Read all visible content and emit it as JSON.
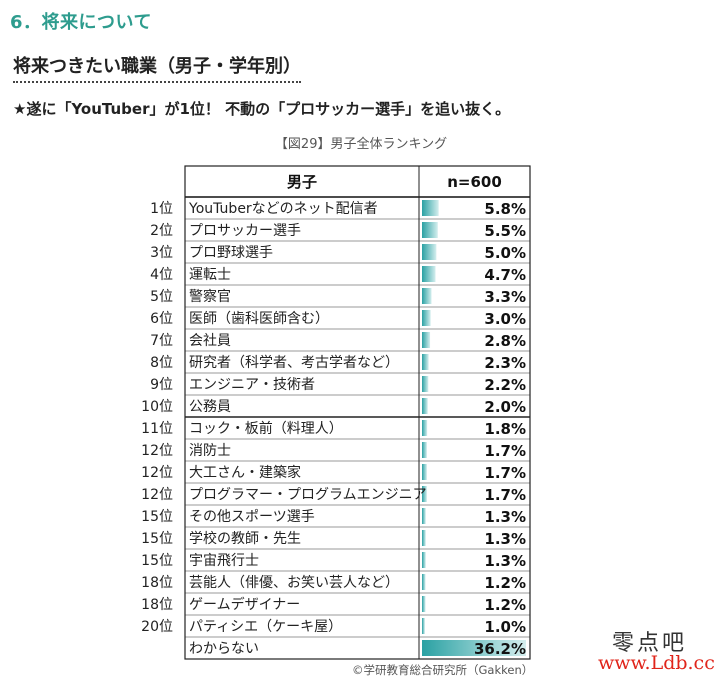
{
  "page": {
    "section_heading": "6．将来について",
    "sub_heading": "将来つきたい職業（男子・学年別）",
    "lead": "★遂に「YouTuber」が1位！ 不動の「プロサッカー選手」を追い抜く。",
    "figure_caption": "【図29】男子全体ランキング",
    "copyright": "©学研教育総合研究所（Gakken）",
    "watermark_line1": "零点吧",
    "watermark_line2": "www.Ldb.cc"
  },
  "colors": {
    "accent": "#2e9c8e",
    "bar_dark": "#2aa1a3",
    "bar_light": "#d4eeee"
  },
  "chart_data": {
    "type": "table",
    "title": "【図29】男子全体ランキング",
    "column_headers": [
      "男子",
      "n=600"
    ],
    "unit": "%",
    "ylim": [
      0,
      36.2
    ],
    "rows": [
      {
        "rank": "1位",
        "job": "YouTuberなどのネット配信者",
        "value": 5.8,
        "label": "5.8%"
      },
      {
        "rank": "2位",
        "job": "プロサッカー選手",
        "value": 5.5,
        "label": "5.5%"
      },
      {
        "rank": "3位",
        "job": "プロ野球選手",
        "value": 5.0,
        "label": "5.0%"
      },
      {
        "rank": "4位",
        "job": "運転士",
        "value": 4.7,
        "label": "4.7%"
      },
      {
        "rank": "5位",
        "job": "警察官",
        "value": 3.3,
        "label": "3.3%"
      },
      {
        "rank": "6位",
        "job": "医師（歯科医師含む）",
        "value": 3.0,
        "label": "3.0%"
      },
      {
        "rank": "7位",
        "job": "会社員",
        "value": 2.8,
        "label": "2.8%"
      },
      {
        "rank": "8位",
        "job": "研究者（科学者、考古学者など）",
        "value": 2.3,
        "label": "2.3%"
      },
      {
        "rank": "9位",
        "job": "エンジニア・技術者",
        "value": 2.2,
        "label": "2.2%"
      },
      {
        "rank": "10位",
        "job": "公務員",
        "value": 2.0,
        "label": "2.0%"
      },
      {
        "rank": "11位",
        "job": "コック・板前（料理人）",
        "value": 1.8,
        "label": "1.8%"
      },
      {
        "rank": "12位",
        "job": "消防士",
        "value": 1.7,
        "label": "1.7%"
      },
      {
        "rank": "12位",
        "job": "大工さん・建築家",
        "value": 1.7,
        "label": "1.7%"
      },
      {
        "rank": "12位",
        "job": "プログラマー・プログラムエンジニア",
        "value": 1.7,
        "label": "1.7%"
      },
      {
        "rank": "15位",
        "job": "その他スポーツ選手",
        "value": 1.3,
        "label": "1.3%"
      },
      {
        "rank": "15位",
        "job": "学校の教師・先生",
        "value": 1.3,
        "label": "1.3%"
      },
      {
        "rank": "15位",
        "job": "宇宙飛行士",
        "value": 1.3,
        "label": "1.3%"
      },
      {
        "rank": "18位",
        "job": "芸能人（俳優、お笑い芸人など）",
        "value": 1.2,
        "label": "1.2%"
      },
      {
        "rank": "18位",
        "job": "ゲームデザイナー",
        "value": 1.2,
        "label": "1.2%"
      },
      {
        "rank": "20位",
        "job": "パティシエ（ケーキ屋）",
        "value": 1.0,
        "label": "1.0%"
      },
      {
        "rank": "",
        "job": "わからない",
        "value": 36.2,
        "label": "36.2%"
      }
    ]
  }
}
